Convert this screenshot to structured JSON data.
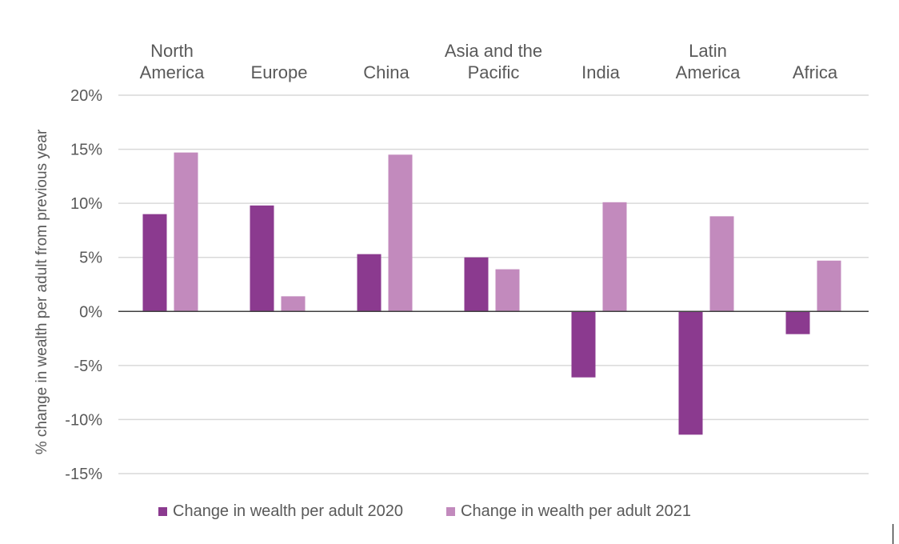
{
  "chart_data": {
    "type": "bar",
    "categories": [
      [
        "North",
        "America"
      ],
      [
        "Europe"
      ],
      [
        "China"
      ],
      [
        "Asia and the",
        "Pacific"
      ],
      [
        "India"
      ],
      [
        "Latin",
        "America"
      ],
      [
        "Africa"
      ]
    ],
    "series": [
      {
        "name": "Change in wealth per adult 2020",
        "color": "#8B3A8F",
        "values": [
          9.0,
          9.8,
          5.3,
          5.0,
          -6.1,
          -11.4,
          -2.1
        ]
      },
      {
        "name": "Change in wealth per adult 2021",
        "color": "#C28ABD",
        "values": [
          14.7,
          1.4,
          14.5,
          3.9,
          10.1,
          8.8,
          4.7
        ]
      }
    ],
    "ylabel": "% change in wealth per adult from previous year",
    "ylim": [
      -15,
      20
    ],
    "yticks": [
      20,
      15,
      10,
      5,
      0,
      -5,
      -10,
      -15
    ],
    "ytick_labels": [
      "20%",
      "15%",
      "10%",
      "5%",
      "0%",
      "-5%",
      "-10%",
      "-15%"
    ],
    "grid": true,
    "legend_position": "bottom",
    "category_labels_position": "top"
  }
}
